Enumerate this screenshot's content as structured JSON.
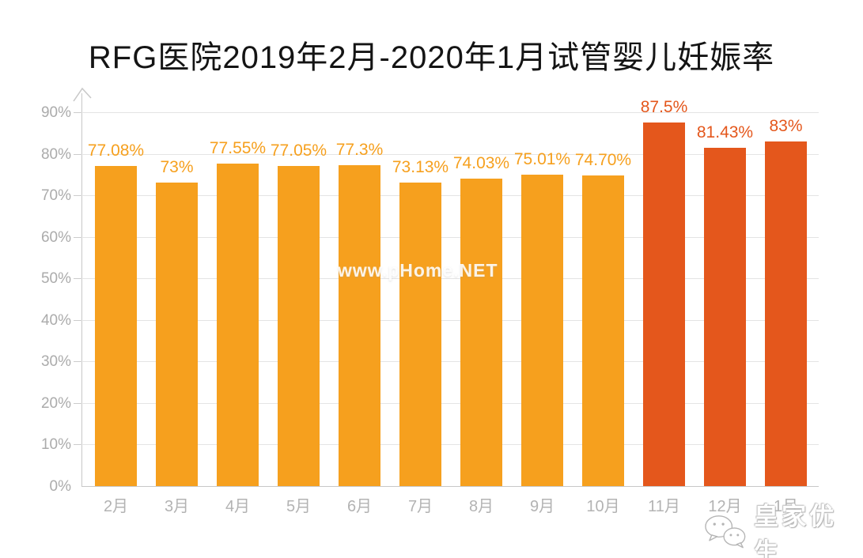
{
  "title": "RFG医院2019年2月-2020年1月试管婴儿妊娠率",
  "watermarks": {
    "center": "www.pHome.NET",
    "brand": "皇家优生",
    "brand_icon": "wechat-icon"
  },
  "chart_data": {
    "type": "bar",
    "title": "RFG医院2019年2月-2020年1月试管婴儿妊娠率",
    "categories": [
      "2月",
      "3月",
      "4月",
      "5月",
      "6月",
      "7月",
      "8月",
      "9月",
      "10月",
      "11月",
      "12月",
      "1月"
    ],
    "values": [
      77.08,
      73,
      77.55,
      77.05,
      77.3,
      73.13,
      74.03,
      75.01,
      74.7,
      87.5,
      81.43,
      83
    ],
    "labels": [
      "77.08%",
      "73%",
      "77.55%",
      "77.05%",
      "77.3%",
      "73.13%",
      "74.03%",
      "75.01%",
      "74.70%",
      "87.5%",
      "81.43%",
      "83%"
    ],
    "xlabel": "",
    "ylabel": "",
    "ylim": [
      0,
      90
    ],
    "yticks": [
      "0%",
      "10%",
      "20%",
      "30%",
      "40%",
      "50%",
      "60%",
      "70%",
      "80%",
      "90%"
    ],
    "grid": true,
    "legend": "none",
    "highlight_from_index": 9,
    "colors": {
      "bar_normal": "#F6A01E",
      "bar_highlight": "#E4571C",
      "label_normal": "#F6A01E",
      "label_highlight": "#E4571C",
      "gridline": "#E4E4E4",
      "axis": "#C8C8C8",
      "tick_label": "#ABABAB",
      "title": "#141414"
    }
  }
}
